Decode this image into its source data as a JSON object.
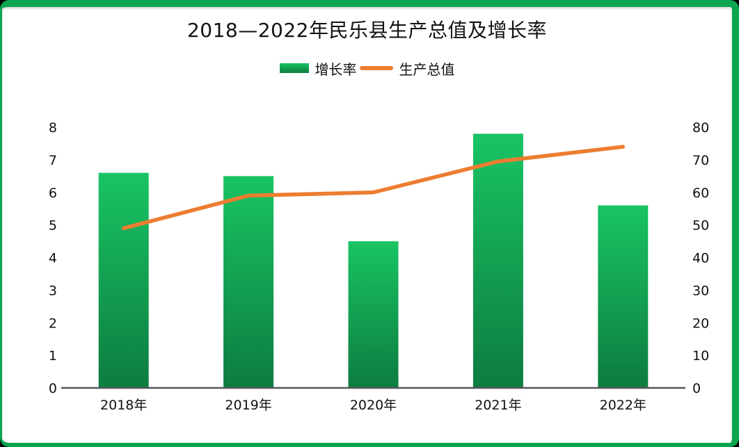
{
  "page": {
    "outer_background": "#000000"
  },
  "card": {
    "background": "#ffffff",
    "border_color": "#0aa54e"
  },
  "colors": {
    "bar_gradient_top": "#19c463",
    "bar_gradient_bottom": "#0d7c40",
    "line": "#ed7d31",
    "axis_line": "#55575c",
    "text": "#111111"
  },
  "chart_data": {
    "type": "bar",
    "combo": "bar+line",
    "title": "2018—2022年民乐县生产总值及增长率",
    "categories": [
      "2018年",
      "2019年",
      "2020年",
      "2021年",
      "2022年"
    ],
    "series": [
      {
        "name": "增长率",
        "type": "bar",
        "axis": "left",
        "values": [
          6.6,
          6.5,
          4.5,
          7.8,
          5.6
        ]
      },
      {
        "name": "生产总值",
        "type": "line",
        "axis": "right",
        "values": [
          49,
          59,
          60,
          69.5,
          74
        ]
      }
    ],
    "left_axis": {
      "min": 0,
      "max": 8,
      "step": 1,
      "ticks": [
        "0",
        "1",
        "2",
        "3",
        "4",
        "5",
        "6",
        "7",
        "8"
      ]
    },
    "right_axis": {
      "min": 0,
      "max": 80,
      "step": 10,
      "ticks": [
        "0",
        "10",
        "20",
        "30",
        "40",
        "50",
        "60",
        "70",
        "80"
      ]
    },
    "grid": false,
    "legend_position": "top"
  }
}
